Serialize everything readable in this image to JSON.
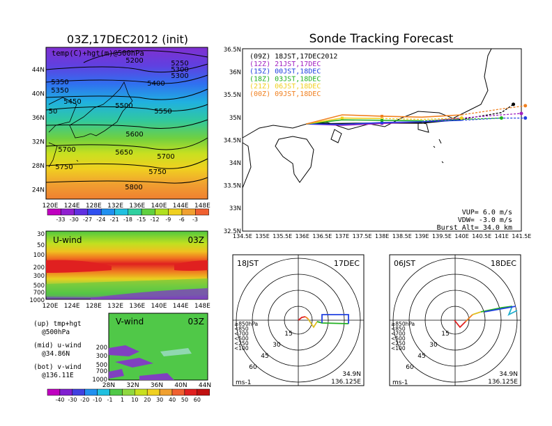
{
  "left": {
    "title": "03Z,17DEC2012 (init)",
    "map_label": "temp(C)+hgt(m)@500hPa",
    "lon_ticks": [
      "120E",
      "124E",
      "128E",
      "132E",
      "136E",
      "140E",
      "144E",
      "148E"
    ],
    "lat_ticks": [
      "44N",
      "40N",
      "36N",
      "32N",
      "28N",
      "24N"
    ],
    "contours": [
      "5200",
      "5250",
      "5300",
      "5350",
      "5300",
      "5350",
      "5400",
      "5450",
      "5500",
      "5550",
      "50",
      "5600",
      "5650",
      "5700",
      "5700",
      "5750",
      "5750",
      "5800"
    ],
    "temp_colorbar": [
      "-33",
      "-30",
      "-27",
      "-24",
      "-21",
      "-18",
      "-15",
      "-12",
      "-9",
      "-6",
      "-3"
    ],
    "uwind": {
      "label": "U-wind",
      "time": "03Z",
      "p_ticks": [
        "30",
        "50",
        "100",
        "200",
        "300",
        "500",
        "700",
        "1000"
      ],
      "lon_ticks": [
        "120E",
        "124E",
        "128E",
        "132E",
        "136E",
        "140E",
        "144E",
        "148E"
      ]
    },
    "vwind": {
      "label": "V-wind",
      "time": "03Z",
      "p_ticks": [
        "200",
        "300",
        "500",
        "700",
        "1000"
      ],
      "lat_ticks": [
        "28N",
        "32N",
        "36N",
        "40N",
        "44N"
      ]
    },
    "notes": [
      {
        "a": "(up) tmp+hgt",
        "b": "@500hPa"
      },
      {
        "a": "(mid) u-wind",
        "b": "@34.86N"
      },
      {
        "a": "(bot) v-wind",
        "b": "@136.11E"
      }
    ],
    "wind_colorbar": [
      "-40",
      "-30",
      "-20",
      "-10",
      "-1",
      "1",
      "10",
      "20",
      "30",
      "40",
      "50",
      "60"
    ]
  },
  "track": {
    "title": "Sonde Tracking Forecast",
    "legend": [
      {
        "text": "(09Z)  18JST,17DEC2012",
        "color": "#000000"
      },
      {
        "text": "(12Z)  21JST,17DEC",
        "color": "#a020c0"
      },
      {
        "text": "(15Z)  00JST,18DEC",
        "color": "#2040e0"
      },
      {
        "text": "(18Z)  03JST,18DEC",
        "color": "#20b020"
      },
      {
        "text": "(21Z)  06JST,18DEC",
        "color": "#f0d020"
      },
      {
        "text": "(00Z)  09JST,18DEC",
        "color": "#f08020"
      }
    ],
    "lat_ticks": [
      "36.5N",
      "36N",
      "35.5N",
      "35N",
      "34.5N",
      "34N",
      "33.5N",
      "33N",
      "32.5N"
    ],
    "lon_ticks": [
      "134.5E",
      "135E",
      "135.5E",
      "136E",
      "136.5E",
      "137E",
      "137.5E",
      "138E",
      "138.5E",
      "139E",
      "139.5E",
      "140E",
      "140.5E",
      "141E",
      "141.5E"
    ],
    "vup": "VUP=  6.0  m/s",
    "vdw": "VDW= -3.0  m/s",
    "burst": "Burst Alt=  34.0  km"
  },
  "hodographs": [
    {
      "time": "18JST",
      "date": "17DEC",
      "lat": "34.9N",
      "lon": "136.125E",
      "unit": "ms-1",
      "rings": [
        "15",
        "30",
        "45",
        "60"
      ],
      "levels": [
        {
          "t": "≥850hPa",
          "c": "#e02020"
        },
        {
          "t": "<850",
          "c": "#f08020"
        },
        {
          "t": "<700",
          "c": "#e0c020"
        },
        {
          "t": "<500",
          "c": "#20b020"
        },
        {
          "t": "<250",
          "c": "#20b0d0"
        },
        {
          "t": "<100",
          "c": "#2040e0"
        }
      ]
    },
    {
      "time": "06JST",
      "date": "18DEC",
      "lat": "34.9N",
      "lon": "136.125E",
      "unit": "ms-1",
      "rings": [
        "15",
        "30",
        "45",
        "60"
      ],
      "levels": [
        {
          "t": "≥850hPa",
          "c": "#e02020"
        },
        {
          "t": "<850",
          "c": "#f08020"
        },
        {
          "t": "<700",
          "c": "#e0c020"
        },
        {
          "t": "<500",
          "c": "#20b020"
        },
        {
          "t": "<250",
          "c": "#20b0d0"
        },
        {
          "t": "<100",
          "c": "#2040e0"
        }
      ]
    }
  ],
  "chart_data": [
    {
      "type": "heatmap",
      "title": "03Z,17DEC2012 (init)",
      "subtitle": "temp(C)+hgt(m)@500hPa",
      "x_ticks": [
        "120E",
        "124E",
        "128E",
        "132E",
        "136E",
        "140E",
        "144E",
        "148E"
      ],
      "y_ticks": [
        "24N",
        "28N",
        "32N",
        "36N",
        "40N",
        "44N"
      ],
      "contour_labels": [
        5200,
        5250,
        5300,
        5350,
        5400,
        5450,
        5500,
        5550,
        5600,
        5650,
        5700,
        5750,
        5800
      ],
      "colorbar": [
        -33,
        -30,
        -27,
        -24,
        -21,
        -18,
        -15,
        -12,
        -9,
        -6,
        -3
      ]
    },
    {
      "type": "heatmap",
      "title": "U-wind",
      "x_ticks": [
        "120E",
        "124E",
        "128E",
        "132E",
        "136E",
        "140E",
        "144E",
        "148E"
      ],
      "y_ticks": [
        30,
        50,
        100,
        200,
        300,
        500,
        700,
        1000
      ]
    },
    {
      "type": "heatmap",
      "title": "V-wind",
      "x_ticks": [
        "28N",
        "32N",
        "36N",
        "40N",
        "44N"
      ],
      "y_ticks": [
        200,
        300,
        500,
        700,
        1000
      ],
      "colorbar": [
        -40,
        -30,
        -20,
        -10,
        -1,
        1,
        10,
        20,
        30,
        40,
        50,
        60
      ]
    },
    {
      "type": "line",
      "title": "Sonde Tracking Forecast",
      "xlim": [
        134.5,
        141.5
      ],
      "ylim": [
        32.5,
        36.5
      ],
      "series": [
        {
          "name": "(09Z) 18JST,17DEC2012",
          "x": [
            136.1,
            137.0,
            138.0,
            139.0,
            140.0,
            141.0,
            141.3
          ],
          "y": [
            34.85,
            34.86,
            34.87,
            34.87,
            34.95,
            35.1,
            35.28
          ]
        },
        {
          "name": "(12Z) 21JST,17DEC",
          "x": [
            136.1,
            137.0,
            138.0,
            139.0,
            140.0,
            141.0,
            141.5
          ],
          "y": [
            34.85,
            34.82,
            34.86,
            34.9,
            34.98,
            35.05,
            35.08
          ]
        },
        {
          "name": "(15Z) 00JST,18DEC",
          "x": [
            136.1,
            137.0,
            138.0,
            139.0,
            140.0,
            141.0,
            141.6
          ],
          "y": [
            34.85,
            34.84,
            34.88,
            34.9,
            34.93,
            34.98,
            34.98
          ]
        },
        {
          "name": "(18Z) 03JST,18DEC",
          "x": [
            136.1,
            137.0,
            138.0,
            139.0,
            140.0,
            141.0
          ],
          "y": [
            34.85,
            34.94,
            34.93,
            34.92,
            34.95,
            34.98
          ]
        },
        {
          "name": "(21Z) 06JST,18DEC",
          "x": [
            136.1,
            137.0,
            138.0,
            139.0,
            140.0
          ],
          "y": [
            34.85,
            34.98,
            34.97,
            34.95,
            34.98
          ]
        },
        {
          "name": "(00Z) 09JST,18DEC",
          "x": [
            136.1,
            137.0,
            138.0,
            139.0,
            140.0,
            141.0,
            141.6
          ],
          "y": [
            34.85,
            35.05,
            35.02,
            35.0,
            35.05,
            35.18,
            35.25
          ]
        }
      ]
    }
  ]
}
